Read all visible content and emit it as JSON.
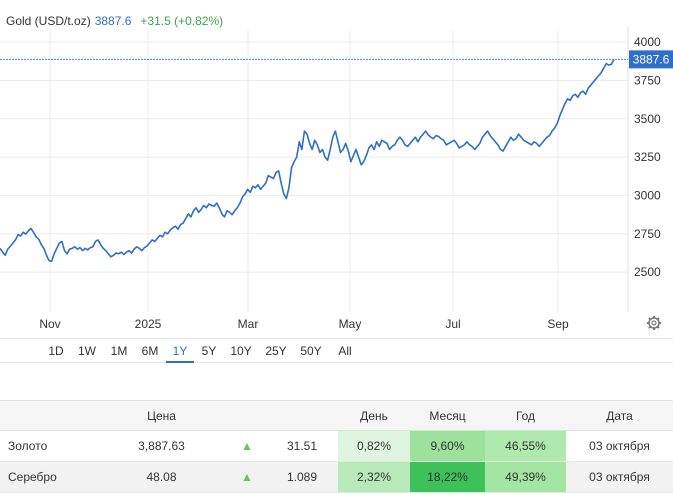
{
  "chart_data": {
    "type": "line",
    "title": "Gold (USD/t.oz)",
    "last_value_label": "3887.6",
    "change_label": "+31.5 (+0.82%)",
    "price_badge": "3887.6",
    "x_tick_labels": [
      "Nov",
      "2025",
      "Mar",
      "May",
      "Jul",
      "Sep"
    ],
    "y_tick_labels": [
      "4000",
      "3750",
      "3500",
      "3250",
      "3000",
      "2750",
      "2500"
    ],
    "ylim": [
      2240,
      4040
    ],
    "grid": true,
    "series": [
      {
        "color": "#2f6fc9",
        "values": [
          2655,
          2630,
          2610,
          2650,
          2668,
          2690,
          2710,
          2745,
          2735,
          2760,
          2748,
          2770,
          2785,
          2760,
          2730,
          2715,
          2680,
          2655,
          2610,
          2575,
          2570,
          2620,
          2655,
          2690,
          2700,
          2640,
          2620,
          2650,
          2655,
          2665,
          2650,
          2660,
          2640,
          2655,
          2645,
          2660,
          2665,
          2700,
          2710,
          2680,
          2655,
          2640,
          2620,
          2600,
          2610,
          2625,
          2620,
          2630,
          2615,
          2630,
          2640,
          2625,
          2650,
          2665,
          2655,
          2640,
          2660,
          2670,
          2690,
          2710,
          2700,
          2720,
          2740,
          2730,
          2760,
          2750,
          2775,
          2790,
          2800,
          2780,
          2810,
          2820,
          2850,
          2880,
          2860,
          2900,
          2920,
          2890,
          2910,
          2935,
          2920,
          2945,
          2935,
          2930,
          2950,
          2920,
          2880,
          2860,
          2900,
          2890,
          2875,
          2900,
          2920,
          2950,
          2990,
          3010,
          3040,
          3020,
          3060,
          3050,
          3070,
          3040,
          3060,
          3080,
          3130,
          3120,
          3110,
          3150,
          3160,
          3080,
          3010,
          2980,
          3050,
          3180,
          3220,
          3250,
          3350,
          3300,
          3420,
          3400,
          3340,
          3300,
          3360,
          3330,
          3280,
          3300,
          3250,
          3230,
          3300,
          3380,
          3420,
          3350,
          3280,
          3300,
          3340,
          3290,
          3220,
          3260,
          3300,
          3250,
          3200,
          3220,
          3260,
          3310,
          3330,
          3300,
          3350,
          3320,
          3360,
          3350,
          3340,
          3300,
          3320,
          3330,
          3360,
          3380,
          3360,
          3330,
          3320,
          3340,
          3360,
          3380,
          3350,
          3380,
          3400,
          3420,
          3395,
          3380,
          3370,
          3390,
          3385,
          3370,
          3360,
          3330,
          3340,
          3350,
          3360,
          3340,
          3310,
          3320,
          3330,
          3350,
          3330,
          3320,
          3300,
          3320,
          3340,
          3380,
          3400,
          3420,
          3390,
          3370,
          3350,
          3330,
          3300,
          3290,
          3320,
          3350,
          3380,
          3360,
          3370,
          3400,
          3380,
          3360,
          3350,
          3340,
          3330,
          3350,
          3340,
          3320,
          3340,
          3360,
          3380,
          3390,
          3420,
          3440,
          3470,
          3520,
          3560,
          3600,
          3630,
          3620,
          3650,
          3660,
          3640,
          3670,
          3680,
          3660,
          3700,
          3720,
          3740,
          3760,
          3780,
          3800,
          3830,
          3860,
          3850,
          3856,
          3887.6
        ]
      }
    ]
  },
  "timeframes": [
    "1D",
    "1W",
    "1M",
    "6M",
    "1Y",
    "5Y",
    "10Y",
    "25Y",
    "50Y",
    "All"
  ],
  "active_timeframe": "1Y",
  "table": {
    "headers": [
      "",
      "Цена",
      "",
      "",
      "День",
      "Месяц",
      "Год",
      "Дата"
    ],
    "rows": [
      {
        "name": "Золото",
        "price": "3,887.63",
        "arrow": "▲",
        "change": "31.51",
        "day": "0,82%",
        "month": "9,60%",
        "year": "46,55%",
        "date": "03 октября",
        "day_color": "#dff5df",
        "month_color": "#9ce29c",
        "year_color": "#aeeaae"
      },
      {
        "name": "Серебро",
        "price": "48.08",
        "arrow": "▲",
        "change": "1.089",
        "day": "2,32%",
        "month": "18,22%",
        "year": "49,39%",
        "date": "03 октября",
        "day_color": "#b8e9b8",
        "month_color": "#3fc15a",
        "year_color": "#a3e6a3"
      }
    ]
  }
}
